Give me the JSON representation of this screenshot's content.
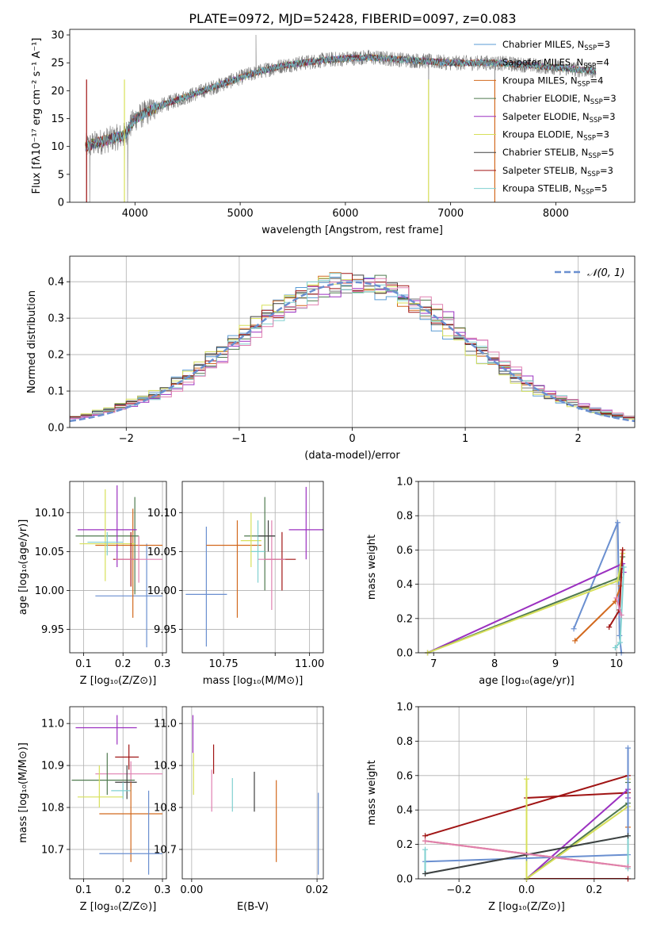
{
  "title": "PLATE=0972, MJD=52428, FIBERID=0097, z=0.083",
  "colors": {
    "Chabrier MILES": "#5a9bd4",
    "Salpeter MILES": "#7a7a7a",
    "Kroupa MILES": "#d2691e",
    "Chabrier ELODIE": "#4f7a4f",
    "Salpeter ELODIE": "#9b30c0",
    "Kroupa ELODIE": "#d7e05a",
    "Chabrier STELIB": "#404040",
    "Salpeter STELIB": "#a01414",
    "Kroupa STELIB": "#80d0d0",
    "norm": "#6a8fd0",
    "extra_pink": "#e080b0",
    "extra_blue": "#6a8fd0"
  },
  "chart_data": [
    {
      "type": "line",
      "panel": "spectrum",
      "xlabel": "wavelength [Angstrom, rest frame]",
      "ylabel": "Flux [fλ10⁻¹⁷ erg cm⁻² s⁻¹ A⁻¹]",
      "xlim": [
        3380,
        8750
      ],
      "ylim": [
        0,
        31
      ],
      "xticks": [
        4000,
        5000,
        6000,
        7000,
        8000
      ],
      "yticks": [
        0,
        5,
        10,
        15,
        20,
        25,
        30
      ],
      "grid": false,
      "legend_position": "top-right",
      "legend": [
        {
          "label": "Chabrier MILES, N",
          "sub": "SSP",
          "tail": "=3",
          "color": "Chabrier MILES"
        },
        {
          "label": "Salpeter MILES, N",
          "sub": "SSP",
          "tail": "=4",
          "color": "Salpeter MILES"
        },
        {
          "label": "Kroupa MILES, N",
          "sub": "SSP",
          "tail": "=4",
          "color": "Kroupa MILES"
        },
        {
          "label": "Chabrier ELODIE, N",
          "sub": "SSP",
          "tail": "=3",
          "color": "Chabrier ELODIE"
        },
        {
          "label": "Salpeter ELODIE, N",
          "sub": "SSP",
          "tail": "=3",
          "color": "Salpeter ELODIE"
        },
        {
          "label": "Kroupa ELODIE, N",
          "sub": "SSP",
          "tail": "=3",
          "color": "Kroupa ELODIE"
        },
        {
          "label": "Chabrier STELIB, N",
          "sub": "SSP",
          "tail": "=5",
          "color": "Chabrier STELIB"
        },
        {
          "label": "Salpeter STELIB, N",
          "sub": "SSP",
          "tail": "=3",
          "color": "Salpeter STELIB"
        },
        {
          "label": "Kroupa STELIB, N",
          "sub": "SSP",
          "tail": "=5",
          "color": "Kroupa STELIB"
        }
      ],
      "wavelength_range": [
        3530,
        8380
      ],
      "continuum": [
        [
          3530,
          10.0
        ],
        [
          3700,
          11.0
        ],
        [
          3900,
          12.0
        ],
        [
          4000,
          15.0
        ],
        [
          4200,
          17.0
        ],
        [
          4500,
          19.0
        ],
        [
          4800,
          21.0
        ],
        [
          5100,
          23.0
        ],
        [
          5400,
          24.5
        ],
        [
          5800,
          25.5
        ],
        [
          6200,
          26.0
        ],
        [
          6600,
          25.5
        ],
        [
          7000,
          25.0
        ],
        [
          7400,
          25.0
        ],
        [
          7800,
          24.5
        ],
        [
          8380,
          23.5
        ]
      ],
      "spikes": [
        [
          3540,
          0
        ],
        [
          3570,
          0
        ],
        [
          3900,
          0
        ],
        [
          3930,
          0
        ],
        [
          5150,
          30
        ],
        [
          6790,
          0
        ],
        [
          7420,
          0
        ]
      ]
    },
    {
      "type": "step",
      "panel": "residuals",
      "xlabel": "(data-model)/error",
      "ylabel": "Normed distribution",
      "xlim": [
        -2.5,
        2.5
      ],
      "ylim": [
        0,
        0.47
      ],
      "xticks": [
        -2,
        -1,
        0,
        1,
        2
      ],
      "yticks": [
        0.0,
        0.1,
        0.2,
        0.3,
        0.4
      ],
      "grid": true,
      "legend_position": "top-right",
      "norm_label": "𝒩(0, 1)"
    },
    {
      "type": "errorbar",
      "panel": "age-vs-Z",
      "xlabel": "Z [log₁₀(Z/Z⊙)]",
      "ylabel": "age  [log₁₀(age/yr)]",
      "xlim": [
        0.065,
        0.31
      ],
      "ylim": [
        9.92,
        10.14
      ],
      "xticks": [
        0.1,
        0.2,
        0.3
      ],
      "yticks": [
        9.95,
        10.0,
        10.05,
        10.1
      ],
      "grid": true,
      "points": [
        {
          "color": "extra_blue",
          "x": 0.26,
          "xerr": [
            0.13,
            0.3
          ],
          "y": 9.993,
          "yerr": [
            9.927,
            10.06
          ]
        },
        {
          "color": "Kroupa MILES",
          "x": 0.225,
          "xerr": [
            0.13,
            0.3
          ],
          "y": 10.058,
          "yerr": [
            9.965,
            10.105
          ]
        },
        {
          "color": "Chabrier ELODIE",
          "x": 0.23,
          "xerr": [
            0.08,
            0.24
          ],
          "y": 10.07,
          "yerr": [
            9.995,
            10.12
          ]
        },
        {
          "color": "Salpeter ELODIE",
          "x": 0.185,
          "xerr": [
            0.085,
            0.235
          ],
          "y": 10.078,
          "yerr": [
            10.03,
            10.135
          ]
        },
        {
          "color": "Kroupa ELODIE",
          "x": 0.155,
          "xerr": [
            0.09,
            0.23
          ],
          "y": 10.06,
          "yerr": [
            10.012,
            10.13
          ]
        },
        {
          "color": "Salpeter STELIB",
          "x": 0.22,
          "xerr": [
            0.175,
            0.24
          ],
          "y": 10.04,
          "yerr": [
            10.005,
            10.075
          ]
        },
        {
          "color": "extra_pink",
          "x": 0.24,
          "xerr": [
            0.18,
            0.3
          ],
          "y": 10.04,
          "yerr": [
            10.01,
            10.07
          ]
        },
        {
          "color": "Kroupa STELIB",
          "x": 0.16,
          "xerr": [
            0.11,
            0.2
          ],
          "y": 10.062,
          "yerr": [
            10.045,
            10.075
          ]
        }
      ]
    },
    {
      "type": "errorbar",
      "panel": "age-vs-mass",
      "xlabel": "mass [log₁₀(M/M⊙)]",
      "ylabel": "",
      "xlim": [
        10.63,
        11.04
      ],
      "ylim": [
        9.92,
        10.14
      ],
      "xticks": [
        10.75,
        10.9,
        11.0
      ],
      "xticklabels": [
        "10.75",
        "",
        "11.00"
      ],
      "yticks": [
        9.95,
        10.0,
        10.05,
        10.1
      ],
      "grid": true,
      "points": [
        {
          "color": "extra_blue",
          "x": 10.7,
          "xerr": [
            10.64,
            10.76
          ],
          "y": 9.995,
          "yerr": [
            9.928,
            10.082
          ]
        },
        {
          "color": "Kroupa MILES",
          "x": 10.79,
          "xerr": [
            10.7,
            10.86
          ],
          "y": 10.058,
          "yerr": [
            9.965,
            10.09
          ]
        },
        {
          "color": "Chabrier ELODIE",
          "x": 10.87,
          "xerr": [
            10.81,
            10.9
          ],
          "y": 10.07,
          "yerr": [
            10.0,
            10.12
          ]
        },
        {
          "color": "Salpeter ELODIE",
          "x": 10.99,
          "xerr": [
            10.94,
            11.04
          ],
          "y": 10.078,
          "yerr": [
            10.04,
            10.133
          ]
        },
        {
          "color": "Kroupa ELODIE",
          "x": 10.83,
          "xerr": [
            10.8,
            10.86
          ],
          "y": 10.064,
          "yerr": [
            10.03,
            10.1
          ]
        },
        {
          "color": "Salpeter STELIB",
          "x": 10.92,
          "xerr": [
            10.87,
            10.96
          ],
          "y": 10.04,
          "yerr": [
            10.0,
            10.075
          ]
        },
        {
          "color": "extra_pink",
          "x": 10.89,
          "xerr": [
            10.85,
            10.93
          ],
          "y": 10.04,
          "yerr": [
            9.975,
            10.09
          ]
        },
        {
          "color": "Kroupa STELIB",
          "x": 10.85,
          "xerr": [
            10.83,
            10.87
          ],
          "y": 10.05,
          "yerr": [
            10.01,
            10.09
          ]
        },
        {
          "color": "Chabrier STELIB",
          "x": 10.88,
          "xerr": [
            10.85,
            10.9
          ],
          "y": 10.07,
          "yerr": [
            10.05,
            10.09
          ]
        }
      ]
    },
    {
      "type": "line",
      "panel": "weight-vs-age",
      "xlabel": "age  [log₁₀(age/yr)]",
      "ylabel": "mass weight",
      "xlim": [
        6.75,
        10.3
      ],
      "ylim": [
        0,
        1.0
      ],
      "xticks": [
        7,
        8,
        9,
        10
      ],
      "yticks": [
        0.0,
        0.2,
        0.4,
        0.6,
        0.8,
        1.0
      ],
      "grid": true,
      "series": [
        {
          "color": "extra_blue",
          "x": [
            9.3,
            10.02,
            10.05,
            10.08
          ],
          "y": [
            0.14,
            0.76,
            0.1,
            0.0
          ]
        },
        {
          "color": "Kroupa MILES",
          "x": [
            9.32,
            9.98,
            10.07,
            10.1
          ],
          "y": [
            0.07,
            0.3,
            0.39,
            0.6
          ]
        },
        {
          "color": "Salpeter ELODIE",
          "x": [
            6.9,
            10.1,
            10.12
          ],
          "y": [
            0.0,
            0.52,
            0.47
          ]
        },
        {
          "color": "Chabrier ELODIE",
          "x": [
            6.9,
            10.05,
            10.1
          ],
          "y": [
            0.0,
            0.44,
            0.56
          ]
        },
        {
          "color": "Kroupa ELODIE",
          "x": [
            6.9,
            10.02,
            10.1
          ],
          "y": [
            0.0,
            0.42,
            0.58
          ]
        },
        {
          "color": "Salpeter STELIB",
          "x": [
            9.88,
            10.05,
            10.1
          ],
          "y": [
            0.15,
            0.25,
            0.6
          ]
        },
        {
          "color": "Kroupa STELIB",
          "x": [
            9.98,
            10.06,
            10.12
          ],
          "y": [
            0.03,
            0.06,
            0.5
          ]
        },
        {
          "color": "extra_pink",
          "x": [
            10.0,
            10.08
          ],
          "y": [
            0.32,
            0.22
          ]
        }
      ]
    },
    {
      "type": "errorbar",
      "panel": "mass-vs-Z",
      "xlabel": "Z [log₁₀(Z/Z⊙)]",
      "ylabel": "mass [log₁₀(M/M⊙)]",
      "xlim": [
        0.065,
        0.31
      ],
      "ylim": [
        10.63,
        11.04
      ],
      "xticks": [
        0.1,
        0.2,
        0.3
      ],
      "yticks": [
        10.7,
        10.8,
        10.9,
        11.0
      ],
      "grid": true,
      "points": [
        {
          "color": "Salpeter ELODIE",
          "x": 0.185,
          "xerr": [
            0.08,
            0.235
          ],
          "y": 10.99,
          "yerr": [
            10.95,
            11.02
          ]
        },
        {
          "color": "Salpeter STELIB",
          "x": 0.215,
          "xerr": [
            0.18,
            0.24
          ],
          "y": 10.92,
          "yerr": [
            10.89,
            10.95
          ]
        },
        {
          "color": "extra_pink",
          "x": 0.22,
          "xerr": [
            0.13,
            0.3
          ],
          "y": 10.88,
          "yerr": [
            10.85,
            10.91
          ]
        },
        {
          "color": "Chabrier ELODIE",
          "x": 0.16,
          "xerr": [
            0.07,
            0.23
          ],
          "y": 10.865,
          "yerr": [
            10.83,
            10.93
          ]
        },
        {
          "color": "Chabrier STELIB",
          "x": 0.21,
          "xerr": [
            0.18,
            0.235
          ],
          "y": 10.86,
          "yerr": [
            10.82,
            10.9
          ]
        },
        {
          "color": "Kroupa STELIB",
          "x": 0.2,
          "xerr": [
            0.17,
            0.22
          ],
          "y": 10.84,
          "yerr": [
            10.82,
            10.86
          ]
        },
        {
          "color": "Kroupa ELODIE",
          "x": 0.14,
          "xerr": [
            0.085,
            0.2
          ],
          "y": 10.825,
          "yerr": [
            10.8,
            10.9
          ]
        },
        {
          "color": "Kroupa MILES",
          "x": 0.22,
          "xerr": [
            0.14,
            0.3
          ],
          "y": 10.785,
          "yerr": [
            10.67,
            10.86
          ]
        },
        {
          "color": "extra_blue",
          "x": 0.265,
          "xerr": [
            0.14,
            0.3
          ],
          "y": 10.69,
          "yerr": [
            10.64,
            10.84
          ]
        }
      ]
    },
    {
      "type": "errorbar",
      "panel": "mass-vs-ebv",
      "xlabel": "E(B-V)",
      "ylabel": "",
      "xlim": [
        -0.0015,
        0.021
      ],
      "ylim": [
        10.63,
        11.04
      ],
      "xticks": [
        0.0,
        0.02
      ],
      "xticklabels": [
        "0.00",
        "0.02"
      ],
      "yticks": [
        10.7,
        10.8,
        10.9,
        11.0
      ],
      "grid": true,
      "points": [
        {
          "color": "Salpeter ELODIE",
          "x": 0.0002,
          "y": 10.99,
          "yerr": [
            10.93,
            11.02
          ]
        },
        {
          "color": "Kroupa ELODIE",
          "x": 0.0003,
          "y": 10.88,
          "yerr": [
            10.83,
            10.93
          ]
        },
        {
          "color": "Salpeter STELIB",
          "x": 0.0035,
          "y": 10.915,
          "yerr": [
            10.88,
            10.95
          ]
        },
        {
          "color": "extra_pink",
          "x": 0.0032,
          "y": 10.84,
          "yerr": [
            10.79,
            10.89
          ]
        },
        {
          "color": "Kroupa STELIB",
          "x": 0.0065,
          "y": 10.83,
          "yerr": [
            10.79,
            10.87
          ]
        },
        {
          "color": "Chabrier STELIB",
          "x": 0.01,
          "y": 10.84,
          "yerr": [
            10.79,
            10.885
          ]
        },
        {
          "color": "Kroupa MILES",
          "x": 0.0135,
          "y": 10.77,
          "yerr": [
            10.67,
            10.865
          ]
        },
        {
          "color": "extra_blue",
          "x": 0.0202,
          "y": 10.74,
          "yerr": [
            10.64,
            10.835
          ]
        }
      ]
    },
    {
      "type": "line",
      "panel": "weight-vs-Z",
      "xlabel": "Z [log₁₀(Z/Z⊙)]",
      "ylabel": "mass weight",
      "xlim": [
        -0.32,
        0.32
      ],
      "ylim": [
        0,
        1.0
      ],
      "xticks": [
        -0.2,
        0.0,
        0.2
      ],
      "yticks": [
        0.0,
        0.2,
        0.4,
        0.6,
        0.8,
        1.0
      ],
      "grid": true,
      "series": [
        {
          "color": "Salpeter STELIB",
          "x": [
            -0.3,
            0.3,
            0.3,
            0.0,
            0.0,
            0.3
          ],
          "y": [
            0.25,
            0.6,
            0.5,
            0.47,
            0.0,
            0.0
          ]
        },
        {
          "color": "Kroupa MILES",
          "x": [
            -0.3,
            0.3,
            0.3
          ],
          "y": [
            0.22,
            0.07,
            0.3
          ]
        },
        {
          "color": "Salpeter ELODIE",
          "x": [
            0.0,
            0.3,
            0.3
          ],
          "y": [
            0.0,
            0.52,
            0.47
          ]
        },
        {
          "color": "Chabrier ELODIE",
          "x": [
            0.0,
            0.3,
            0.3
          ],
          "y": [
            0.0,
            0.44,
            0.56
          ]
        },
        {
          "color": "Kroupa ELODIE",
          "x": [
            0.0,
            0.0,
            0.3,
            0.3
          ],
          "y": [
            0.58,
            0.0,
            0.42,
            0.58
          ]
        },
        {
          "color": "extra_blue",
          "x": [
            -0.3,
            0.0,
            0.3,
            0.3
          ],
          "y": [
            0.1,
            0.12,
            0.14,
            0.76
          ]
        },
        {
          "color": "Kroupa STELIB",
          "x": [
            -0.3,
            -0.3,
            0.3,
            0.3
          ],
          "y": [
            0.17,
            0.03,
            0.25,
            0.06
          ]
        },
        {
          "color": "Chabrier STELIB",
          "x": [
            -0.3,
            0.0,
            0.3
          ],
          "y": [
            0.03,
            0.14,
            0.25
          ]
        },
        {
          "color": "extra_pink",
          "x": [
            -0.3,
            0.3
          ],
          "y": [
            0.22,
            0.07
          ]
        }
      ]
    }
  ]
}
